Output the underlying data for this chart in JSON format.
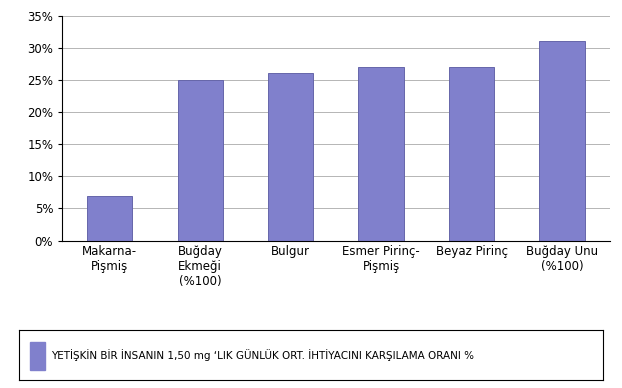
{
  "categories": [
    "Makarna-\nPişmiş",
    "Buğday\nEkmeği\n(%100)",
    "Bulgur",
    "Esmer Pirinç-\nPişmiş",
    "Beyaz Pirinç",
    "Buğday Unu\n(%100)"
  ],
  "values": [
    7,
    25,
    26,
    27,
    27,
    31
  ],
  "bar_color": "#8080CC",
  "bar_edge_color": "#6666AA",
  "ylim": [
    0,
    35
  ],
  "yticks": [
    0,
    5,
    10,
    15,
    20,
    25,
    30,
    35
  ],
  "ytick_labels": [
    "0%",
    "5%",
    "10%",
    "15%",
    "20%",
    "25%",
    "30%",
    "35%"
  ],
  "legend_text": "YETİŞKİN BİR İNSANIN 1,50 mg ‘LIK GÜNLÜK ORT. İHTİYACINI KARŞILAMA ORANI %",
  "legend_color": "#8080CC",
  "background_color": "#ffffff",
  "grid_color": "#999999",
  "tick_fontsize": 8.5,
  "label_fontsize": 8.5,
  "legend_fontsize": 7.5
}
